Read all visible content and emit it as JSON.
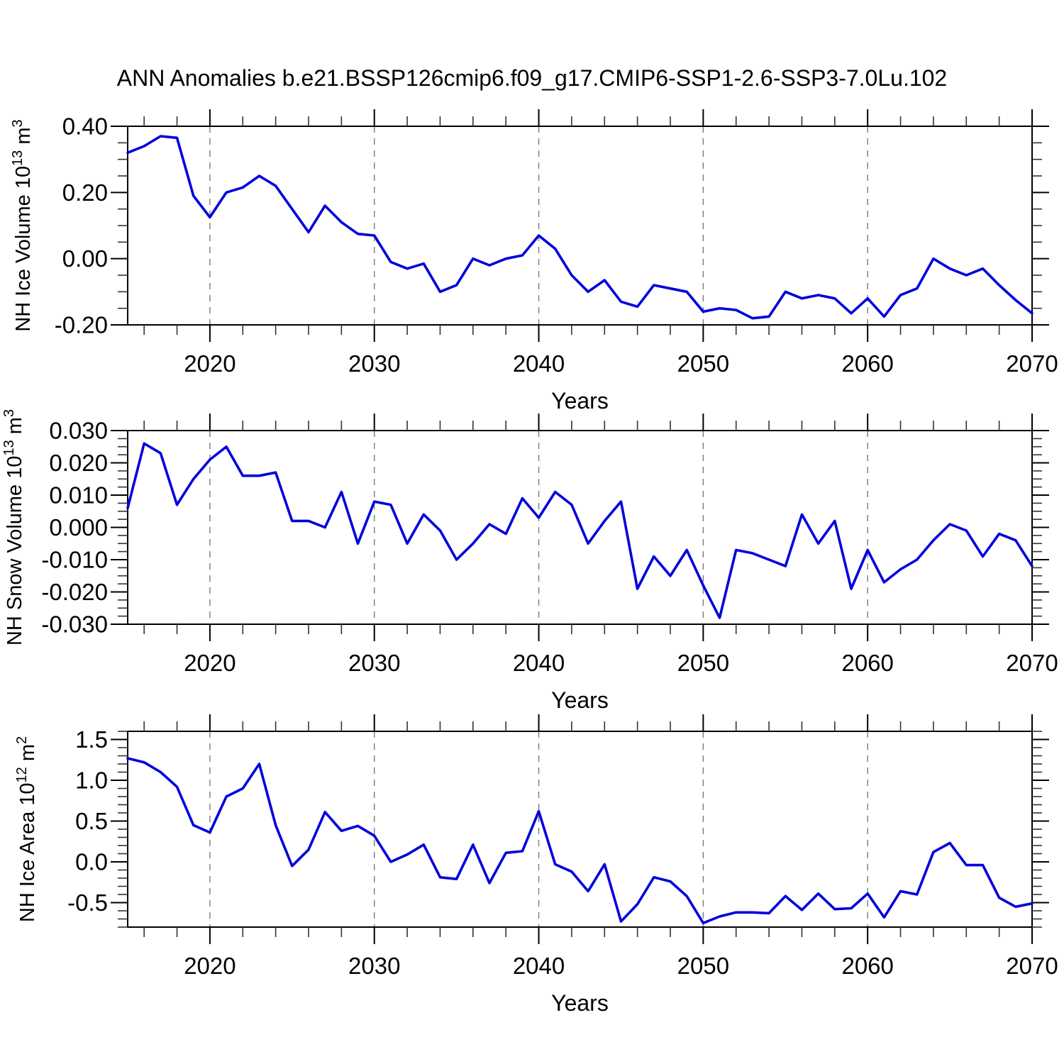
{
  "figure": {
    "title": "ANN Anomalies b.e21.BSSP126cmip6.f09_g17.CMIP6-SSP1-2.6-SSP3-7.0Lu.102"
  },
  "colors": {
    "line": "#0000dd",
    "grid": "#7a7a7a",
    "axis": "#000000",
    "minor_tick": "#333333"
  },
  "chart_data": [
    {
      "type": "line",
      "name": "nh-ice-volume",
      "xlabel": "Years",
      "ylabel_parts": [
        {
          "t": "NH Ice Volume 10"
        },
        {
          "t": "13",
          "sup": true
        },
        {
          "t": " m"
        },
        {
          "t": "3",
          "sup": true
        }
      ],
      "x": [
        2015,
        2016,
        2017,
        2018,
        2019,
        2020,
        2021,
        2022,
        2023,
        2024,
        2025,
        2026,
        2027,
        2028,
        2029,
        2030,
        2031,
        2032,
        2033,
        2034,
        2035,
        2036,
        2037,
        2038,
        2039,
        2040,
        2041,
        2042,
        2043,
        2044,
        2045,
        2046,
        2047,
        2048,
        2049,
        2050,
        2051,
        2052,
        2053,
        2054,
        2055,
        2056,
        2057,
        2058,
        2059,
        2060,
        2061,
        2062,
        2063,
        2064,
        2065,
        2066,
        2067,
        2068,
        2069,
        2070
      ],
      "values": [
        0.32,
        0.34,
        0.37,
        0.365,
        0.19,
        0.125,
        0.2,
        0.215,
        0.25,
        0.22,
        0.15,
        0.08,
        0.16,
        0.11,
        0.075,
        0.07,
        -0.01,
        -0.03,
        -0.015,
        -0.1,
        -0.08,
        0.0,
        -0.02,
        0.0,
        0.01,
        0.07,
        0.03,
        -0.05,
        -0.1,
        -0.065,
        -0.13,
        -0.145,
        -0.08,
        -0.09,
        -0.1,
        -0.16,
        -0.15,
        -0.155,
        -0.18,
        -0.175,
        -0.1,
        -0.12,
        -0.11,
        -0.12,
        -0.165,
        -0.12,
        -0.175,
        -0.11,
        -0.09,
        0.0,
        -0.03,
        -0.05,
        -0.03,
        -0.08,
        -0.125,
        -0.165
      ],
      "xlim": [
        2015,
        2070
      ],
      "ylim": [
        -0.2,
        0.4
      ],
      "yticks": [
        0.4,
        0.2,
        0.0,
        -0.2
      ],
      "ytick_labels": [
        "0.40",
        "0.20",
        "0.00",
        "-0.20"
      ],
      "y_minor_step": 0.05,
      "xticks": [
        2020,
        2030,
        2040,
        2050,
        2060,
        2070
      ],
      "xtick_labels": [
        "2020",
        "2030",
        "2040",
        "2050",
        "2060",
        "2070"
      ],
      "x_minor_step": 2,
      "grid_years": [
        2020,
        2030,
        2040,
        2050,
        2060
      ],
      "grid_on": "vertical-dashed",
      "legend": "none"
    },
    {
      "type": "line",
      "name": "nh-snow-volume",
      "xlabel": "Years",
      "ylabel_parts": [
        {
          "t": "NH Snow Volume 10"
        },
        {
          "t": "13",
          "sup": true
        },
        {
          "t": " m"
        },
        {
          "t": "3",
          "sup": true
        }
      ],
      "x": [
        2015,
        2016,
        2017,
        2018,
        2019,
        2020,
        2021,
        2022,
        2023,
        2024,
        2025,
        2026,
        2027,
        2028,
        2029,
        2030,
        2031,
        2032,
        2033,
        2034,
        2035,
        2036,
        2037,
        2038,
        2039,
        2040,
        2041,
        2042,
        2043,
        2044,
        2045,
        2046,
        2047,
        2048,
        2049,
        2050,
        2051,
        2052,
        2053,
        2054,
        2055,
        2056,
        2057,
        2058,
        2059,
        2060,
        2061,
        2062,
        2063,
        2064,
        2065,
        2066,
        2067,
        2068,
        2069,
        2070
      ],
      "values": [
        0.006,
        0.026,
        0.023,
        0.007,
        0.015,
        0.021,
        0.025,
        0.016,
        0.016,
        0.017,
        0.002,
        0.002,
        0.0,
        0.011,
        -0.005,
        0.008,
        0.007,
        -0.005,
        0.004,
        -0.001,
        -0.01,
        -0.005,
        0.001,
        -0.002,
        0.009,
        0.003,
        0.011,
        0.007,
        -0.005,
        0.002,
        0.008,
        -0.019,
        -0.009,
        -0.015,
        -0.007,
        -0.018,
        -0.028,
        -0.007,
        -0.008,
        -0.01,
        -0.012,
        0.004,
        -0.005,
        0.002,
        -0.019,
        -0.007,
        -0.017,
        -0.013,
        -0.01,
        -0.004,
        0.001,
        -0.001,
        -0.009,
        -0.002,
        -0.004,
        -0.012
      ],
      "xlim": [
        2015,
        2070
      ],
      "ylim": [
        -0.03,
        0.03
      ],
      "yticks": [
        0.03,
        0.02,
        0.01,
        0.0,
        -0.01,
        -0.02,
        -0.03
      ],
      "ytick_labels": [
        "0.030",
        "0.020",
        "0.010",
        "0.000",
        "-0.010",
        "-0.020",
        "-0.030"
      ],
      "y_minor_step": 0.0025,
      "xticks": [
        2020,
        2030,
        2040,
        2050,
        2060,
        2070
      ],
      "xtick_labels": [
        "2020",
        "2030",
        "2040",
        "2050",
        "2060",
        "2070"
      ],
      "x_minor_step": 2,
      "grid_years": [
        2020,
        2030,
        2040,
        2050,
        2060
      ],
      "grid_on": "vertical-dashed",
      "legend": "none"
    },
    {
      "type": "line",
      "name": "nh-ice-area",
      "xlabel": "Years",
      "ylabel_parts": [
        {
          "t": "NH Ice Area 10"
        },
        {
          "t": "12",
          "sup": true
        },
        {
          "t": " m"
        },
        {
          "t": "2",
          "sup": true
        }
      ],
      "x": [
        2015,
        2016,
        2017,
        2018,
        2019,
        2020,
        2021,
        2022,
        2023,
        2024,
        2025,
        2026,
        2027,
        2028,
        2029,
        2030,
        2031,
        2032,
        2033,
        2034,
        2035,
        2036,
        2037,
        2038,
        2039,
        2040,
        2041,
        2042,
        2043,
        2044,
        2045,
        2046,
        2047,
        2048,
        2049,
        2050,
        2051,
        2052,
        2053,
        2054,
        2055,
        2056,
        2057,
        2058,
        2059,
        2060,
        2061,
        2062,
        2063,
        2064,
        2065,
        2066,
        2067,
        2068,
        2069,
        2070
      ],
      "values": [
        1.27,
        1.22,
        1.1,
        0.92,
        0.45,
        0.36,
        0.8,
        0.9,
        1.2,
        0.45,
        -0.05,
        0.15,
        0.61,
        0.38,
        0.44,
        0.32,
        0.0,
        0.09,
        0.21,
        -0.19,
        -0.21,
        0.21,
        -0.26,
        0.11,
        0.13,
        0.62,
        -0.03,
        -0.12,
        -0.36,
        -0.03,
        -0.73,
        -0.52,
        -0.19,
        -0.24,
        -0.42,
        -0.75,
        -0.67,
        -0.62,
        -0.62,
        -0.63,
        -0.42,
        -0.59,
        -0.39,
        -0.58,
        -0.57,
        -0.39,
        -0.68,
        -0.36,
        -0.4,
        0.12,
        0.23,
        -0.04,
        -0.04,
        -0.44,
        -0.55,
        -0.51
      ],
      "xlim": [
        2015,
        2070
      ],
      "ylim": [
        -0.8,
        1.6
      ],
      "yticks": [
        1.5,
        1.0,
        0.5,
        0.0,
        -0.5
      ],
      "ytick_labels": [
        "1.5",
        "1.0",
        "0.5",
        "0.0",
        "-0.5"
      ],
      "y_minor_step": 0.1,
      "xticks": [
        2020,
        2030,
        2040,
        2050,
        2060,
        2070
      ],
      "xtick_labels": [
        "2020",
        "2030",
        "2040",
        "2050",
        "2060",
        "2070"
      ],
      "x_minor_step": 2,
      "grid_years": [
        2020,
        2030,
        2040,
        2050,
        2060
      ],
      "grid_on": "vertical-dashed",
      "legend": "none"
    }
  ]
}
